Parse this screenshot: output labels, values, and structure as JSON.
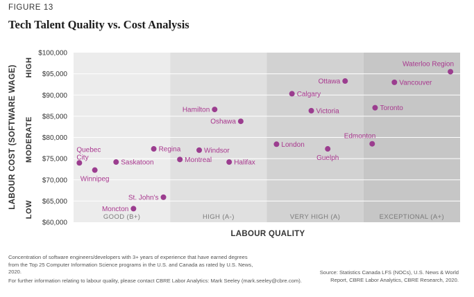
{
  "figure_label": "FIGURE 13",
  "title": "Tech Talent Quality vs. Cost Analysis",
  "colors": {
    "point": "#9b3d8f",
    "label": "#a8378e",
    "band_1": "#ececec",
    "band_2": "#e0e0e0",
    "band_3": "#d2d2d2",
    "band_4": "#c6c6c6",
    "gridline": "#ffffff",
    "axis_text": "#333333"
  },
  "chart_data": {
    "type": "scatter",
    "title": "Tech Talent Quality vs. Cost Analysis",
    "xlabel": "LABOUR QUALITY",
    "ylabel": "LABOUR COST (SOFTWARE WAGE)",
    "ylim": [
      60000,
      100000
    ],
    "yticks": [
      60000,
      65000,
      70000,
      75000,
      80000,
      85000,
      90000,
      95000,
      100000
    ],
    "ytick_labels": [
      "$60,000",
      "$65,000",
      "$70,000",
      "$75,000",
      "$80,000",
      "$85,000",
      "$90,000",
      "$95,000",
      "$100,000"
    ],
    "y_levels": [
      "LOW",
      "MODERATE",
      "HIGH"
    ],
    "quality_bands": [
      "GOOD (B+)",
      "HIGH (A-)",
      "VERY HIGH (A)",
      "EXCEPTIONAL (A+)"
    ],
    "quality_scale": "band index from 0 (left edge of GOOD) to 4 (right edge of EXCEPTIONAL)",
    "grid": true,
    "legend": "none",
    "points": [
      {
        "label": "Moncton",
        "quality": 0.62,
        "cost": 63200,
        "label_side": "left"
      },
      {
        "label": "St. John's",
        "quality": 0.93,
        "cost": 65900,
        "label_side": "left"
      },
      {
        "label": "Winnipeg",
        "quality": 0.22,
        "cost": 72300,
        "label_side": "below"
      },
      {
        "label": "Quebec City",
        "quality": 0.06,
        "cost": 74000,
        "label_side": "above-left"
      },
      {
        "label": "Saskatoon",
        "quality": 0.44,
        "cost": 74200,
        "label_side": "right"
      },
      {
        "label": "Regina",
        "quality": 0.83,
        "cost": 77300,
        "label_side": "right"
      },
      {
        "label": "Montreal",
        "quality": 1.1,
        "cost": 74800,
        "label_side": "right"
      },
      {
        "label": "Windsor",
        "quality": 1.3,
        "cost": 77000,
        "label_side": "right"
      },
      {
        "label": "Halifax",
        "quality": 1.61,
        "cost": 74200,
        "label_side": "right"
      },
      {
        "label": "Hamilton",
        "quality": 1.46,
        "cost": 86600,
        "label_side": "left"
      },
      {
        "label": "Oshawa",
        "quality": 1.73,
        "cost": 83800,
        "label_side": "left"
      },
      {
        "label": "London",
        "quality": 2.1,
        "cost": 78400,
        "label_side": "right"
      },
      {
        "label": "Calgary",
        "quality": 2.26,
        "cost": 90300,
        "label_side": "right"
      },
      {
        "label": "Victoria",
        "quality": 2.46,
        "cost": 86300,
        "label_side": "right"
      },
      {
        "label": "Ottawa",
        "quality": 2.81,
        "cost": 93300,
        "label_side": "left"
      },
      {
        "label": "Guelph",
        "quality": 2.63,
        "cost": 77300,
        "label_side": "below"
      },
      {
        "label": "Edmonton",
        "quality": 3.09,
        "cost": 78500,
        "label_side": "above-left"
      },
      {
        "label": "Toronto",
        "quality": 3.12,
        "cost": 87000,
        "label_side": "right"
      },
      {
        "label": "Vancouver",
        "quality": 3.32,
        "cost": 93000,
        "label_side": "right"
      },
      {
        "label": "Waterloo Region",
        "quality": 3.9,
        "cost": 95500,
        "label_side": "above-left"
      }
    ]
  },
  "footnote": "Concentration of software engineers/developers with 3+ years of experience that have earned degrees from the Top 25 Computer Information Science programs in the U.S. and Canada as rated by U.S. News, 2020.",
  "contact": "For further information relating to labour quality, please contact CBRE Labor Analytics: Mark Seeley (mark.seeley@cbre.com).",
  "source": "Source: Statistics Canada LFS (NOCs), U.S. News & World Report, CBRE Labor Analytics, CBRE Research, 2020."
}
